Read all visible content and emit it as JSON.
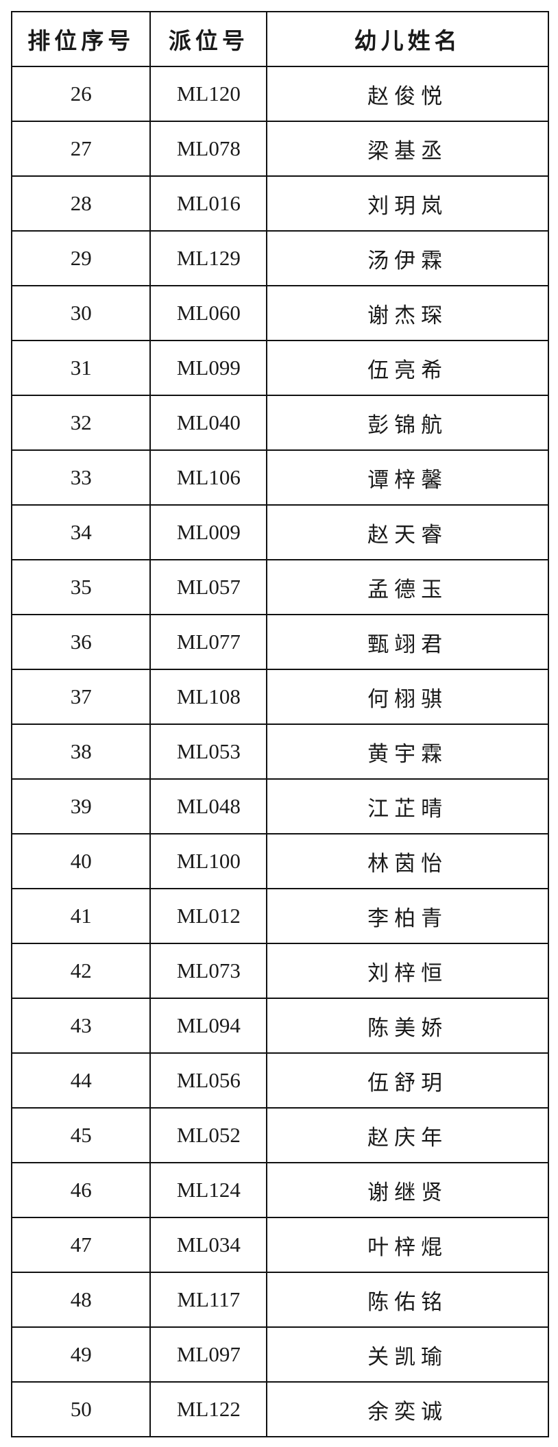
{
  "table": {
    "headers": [
      "排位序号",
      "派位号",
      "幼儿姓名"
    ],
    "rows": [
      [
        "26",
        "ML120",
        "赵俊悦"
      ],
      [
        "27",
        "ML078",
        "梁基丞"
      ],
      [
        "28",
        "ML016",
        "刘玥岚"
      ],
      [
        "29",
        "ML129",
        "汤伊霖"
      ],
      [
        "30",
        "ML060",
        "谢杰琛"
      ],
      [
        "31",
        "ML099",
        "伍亮希"
      ],
      [
        "32",
        "ML040",
        "彭锦航"
      ],
      [
        "33",
        "ML106",
        "谭梓馨"
      ],
      [
        "34",
        "ML009",
        "赵天睿"
      ],
      [
        "35",
        "ML057",
        "孟德玉"
      ],
      [
        "36",
        "ML077",
        "甄翊君"
      ],
      [
        "37",
        "ML108",
        "何栩骐"
      ],
      [
        "38",
        "ML053",
        "黄宇霖"
      ],
      [
        "39",
        "ML048",
        "江芷晴"
      ],
      [
        "40",
        "ML100",
        "林茵怡"
      ],
      [
        "41",
        "ML012",
        "李柏青"
      ],
      [
        "42",
        "ML073",
        "刘梓恒"
      ],
      [
        "43",
        "ML094",
        "陈美娇"
      ],
      [
        "44",
        "ML056",
        "伍舒玥"
      ],
      [
        "45",
        "ML052",
        "赵庆年"
      ],
      [
        "46",
        "ML124",
        "谢继贤"
      ],
      [
        "47",
        "ML034",
        "叶梓焜"
      ],
      [
        "48",
        "ML117",
        "陈佑铭"
      ],
      [
        "49",
        "ML097",
        "关凯瑜"
      ],
      [
        "50",
        "ML122",
        "余奕诚"
      ]
    ]
  }
}
